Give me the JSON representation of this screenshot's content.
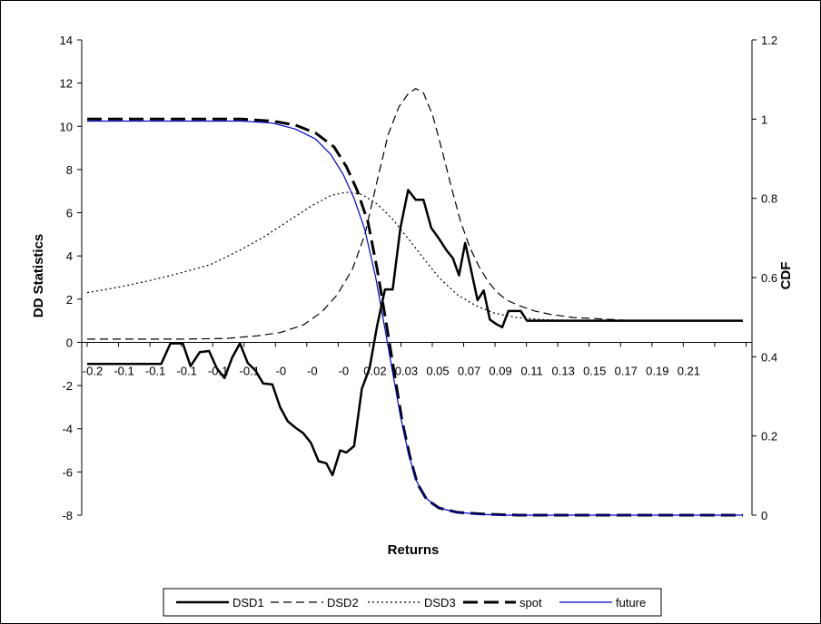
{
  "chart_data": {
    "type": "line",
    "xlabel": "Returns",
    "ylabel": "DD Statistics",
    "y2label": "CDF",
    "ylim": [
      -8,
      14
    ],
    "y2lim": [
      0,
      1.2
    ],
    "y_ticks": [
      "14",
      "12",
      "10",
      "8",
      "6",
      "4",
      "2",
      "0",
      "-2",
      "-4",
      "-6",
      "-8"
    ],
    "y2_ticks": [
      "1.2",
      "1",
      "0.8",
      "0.6",
      "0.4",
      "0.2",
      "0"
    ],
    "x_tick_labels": [
      "-0.2",
      "-0.1",
      "-0.1",
      "-0.1",
      "-0.1",
      "-0.1",
      "-0",
      "-0",
      "-0",
      "0.02",
      "0.03",
      "0.05",
      "0.07",
      "0.09",
      "0.11",
      "0.13",
      "0.15",
      "0.17",
      "0.19",
      "0.21"
    ],
    "x_tick_values": [
      -0.2,
      -0.14,
      -0.12,
      -0.1,
      -0.08,
      -0.06,
      -0.04,
      -0.02,
      0.0,
      0.02,
      0.03,
      0.05,
      0.07,
      0.09,
      0.11,
      0.13,
      0.15,
      0.17,
      0.19,
      0.21
    ],
    "xlim": [
      -0.2,
      0.225
    ],
    "x_axis_at_y": 0,
    "legend_position": "bottom",
    "series": [
      {
        "name": "DSD1",
        "axis": "left",
        "style": "solid-thick",
        "color": "#000000",
        "points": [
          [
            -0.2,
            -1
          ],
          [
            -0.17,
            -1
          ],
          [
            -0.152,
            -1
          ],
          [
            -0.146,
            -0.05
          ],
          [
            -0.138,
            -0.05
          ],
          [
            -0.133,
            -1.1
          ],
          [
            -0.127,
            -0.45
          ],
          [
            -0.121,
            -0.4
          ],
          [
            -0.116,
            -1.2
          ],
          [
            -0.111,
            -1.65
          ],
          [
            -0.106,
            -0.7
          ],
          [
            -0.101,
            -0.05
          ],
          [
            -0.096,
            -0.95
          ],
          [
            -0.091,
            -1.3
          ],
          [
            -0.086,
            -1.9
          ],
          [
            -0.08,
            -1.95
          ],
          [
            -0.075,
            -3
          ],
          [
            -0.07,
            -3.65
          ],
          [
            -0.065,
            -3.95
          ],
          [
            -0.06,
            -4.2
          ],
          [
            -0.055,
            -4.65
          ],
          [
            -0.05,
            -5.5
          ],
          [
            -0.045,
            -5.6
          ],
          [
            -0.041,
            -6.15
          ],
          [
            -0.036,
            -5
          ],
          [
            -0.032,
            -5.1
          ],
          [
            -0.027,
            -4.8
          ],
          [
            -0.022,
            -2.15
          ],
          [
            -0.017,
            -1.2
          ],
          [
            -0.012,
            0.8
          ],
          [
            -0.007,
            2.45
          ],
          [
            -0.002,
            2.45
          ],
          [
            0.003,
            5.3
          ],
          [
            0.008,
            7.05
          ],
          [
            0.013,
            6.6
          ],
          [
            0.018,
            6.6
          ],
          [
            0.023,
            5.3
          ],
          [
            0.028,
            4.8
          ],
          [
            0.033,
            4.25
          ],
          [
            0.037,
            3.9
          ],
          [
            0.041,
            3.1
          ],
          [
            0.045,
            4.6
          ],
          [
            0.049,
            3.3
          ],
          [
            0.053,
            1.95
          ],
          [
            0.057,
            2.4
          ],
          [
            0.061,
            1.05
          ],
          [
            0.065,
            0.85
          ],
          [
            0.069,
            0.7
          ],
          [
            0.073,
            1.45
          ],
          [
            0.077,
            1.45
          ],
          [
            0.081,
            1.45
          ],
          [
            0.085,
            1.0
          ],
          [
            0.09,
            1.0
          ],
          [
            0.225,
            1.0
          ]
        ]
      },
      {
        "name": "DSD2",
        "axis": "left",
        "style": "dashed",
        "color": "#000000",
        "points": [
          [
            -0.2,
            0.15
          ],
          [
            -0.17,
            0.15
          ],
          [
            -0.14,
            0.15
          ],
          [
            -0.11,
            0.18
          ],
          [
            -0.09,
            0.3
          ],
          [
            -0.075,
            0.45
          ],
          [
            -0.06,
            0.8
          ],
          [
            -0.048,
            1.4
          ],
          [
            -0.038,
            2.2
          ],
          [
            -0.028,
            3.4
          ],
          [
            -0.02,
            5.0
          ],
          [
            -0.012,
            7.5
          ],
          [
            -0.005,
            9.6
          ],
          [
            0.002,
            10.9
          ],
          [
            0.008,
            11.5
          ],
          [
            0.013,
            11.75
          ],
          [
            0.018,
            11.55
          ],
          [
            0.024,
            10.5
          ],
          [
            0.03,
            8.9
          ],
          [
            0.036,
            7.2
          ],
          [
            0.042,
            5.6
          ],
          [
            0.048,
            4.4
          ],
          [
            0.054,
            3.5
          ],
          [
            0.06,
            2.8
          ],
          [
            0.066,
            2.3
          ],
          [
            0.072,
            1.95
          ],
          [
            0.08,
            1.7
          ],
          [
            0.09,
            1.45
          ],
          [
            0.1,
            1.3
          ],
          [
            0.115,
            1.15
          ],
          [
            0.13,
            1.1
          ],
          [
            0.15,
            1.02
          ],
          [
            0.225,
            1.0
          ]
        ]
      },
      {
        "name": "DSD3",
        "axis": "left",
        "style": "dotted",
        "color": "#000000",
        "points": [
          [
            -0.2,
            2.3
          ],
          [
            -0.18,
            2.55
          ],
          [
            -0.16,
            2.85
          ],
          [
            -0.14,
            3.2
          ],
          [
            -0.12,
            3.6
          ],
          [
            -0.1,
            4.3
          ],
          [
            -0.085,
            4.9
          ],
          [
            -0.07,
            5.6
          ],
          [
            -0.055,
            6.3
          ],
          [
            -0.042,
            6.8
          ],
          [
            -0.032,
            6.95
          ],
          [
            -0.022,
            6.85
          ],
          [
            -0.012,
            6.4
          ],
          [
            -0.002,
            5.7
          ],
          [
            0.008,
            4.8
          ],
          [
            0.018,
            3.9
          ],
          [
            0.028,
            3.0
          ],
          [
            0.04,
            2.2
          ],
          [
            0.052,
            1.7
          ],
          [
            0.064,
            1.35
          ],
          [
            0.078,
            1.15
          ],
          [
            0.095,
            1.05
          ],
          [
            0.12,
            1.0
          ],
          [
            0.225,
            1.0
          ]
        ]
      },
      {
        "name": "spot",
        "axis": "right",
        "style": "long-dash-thick",
        "color": "#000000",
        "points": [
          [
            -0.2,
            1.0
          ],
          [
            -0.1,
            1.0
          ],
          [
            -0.08,
            0.995
          ],
          [
            -0.065,
            0.985
          ],
          [
            -0.052,
            0.965
          ],
          [
            -0.04,
            0.93
          ],
          [
            -0.032,
            0.88
          ],
          [
            -0.025,
            0.82
          ],
          [
            -0.018,
            0.74
          ],
          [
            -0.012,
            0.62
          ],
          [
            -0.006,
            0.48
          ],
          [
            -0.001,
            0.36
          ],
          [
            0.004,
            0.24
          ],
          [
            0.009,
            0.15
          ],
          [
            0.014,
            0.08
          ],
          [
            0.02,
            0.04
          ],
          [
            0.028,
            0.018
          ],
          [
            0.04,
            0.007
          ],
          [
            0.06,
            0.002
          ],
          [
            0.08,
            0.0
          ],
          [
            0.225,
            0.0
          ]
        ]
      },
      {
        "name": "future",
        "axis": "right",
        "style": "solid-thin",
        "color": "#0000cc",
        "points": [
          [
            -0.2,
            0.995
          ],
          [
            -0.1,
            0.995
          ],
          [
            -0.08,
            0.99
          ],
          [
            -0.065,
            0.975
          ],
          [
            -0.052,
            0.95
          ],
          [
            -0.042,
            0.91
          ],
          [
            -0.034,
            0.86
          ],
          [
            -0.027,
            0.8
          ],
          [
            -0.02,
            0.72
          ],
          [
            -0.013,
            0.6
          ],
          [
            -0.007,
            0.47
          ],
          [
            -0.002,
            0.36
          ],
          [
            0.003,
            0.25
          ],
          [
            0.008,
            0.16
          ],
          [
            0.013,
            0.09
          ],
          [
            0.019,
            0.045
          ],
          [
            0.027,
            0.02
          ],
          [
            0.038,
            0.008
          ],
          [
            0.055,
            0.002
          ],
          [
            0.07,
            0.0
          ],
          [
            0.225,
            0.0
          ]
        ]
      }
    ]
  }
}
